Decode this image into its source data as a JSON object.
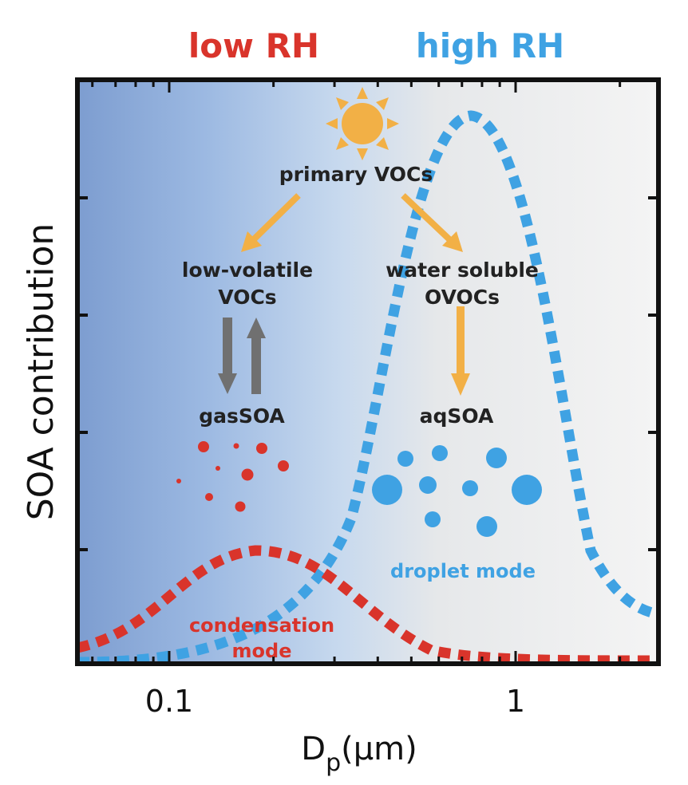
{
  "header": {
    "low_rh": "low RH",
    "high_rh": "high RH"
  },
  "axes": {
    "ylabel": "SOA contribution",
    "xlabel_main": "D",
    "xlabel_sub": "p",
    "xlabel_unit": "(μm)",
    "xticks": [
      {
        "label": "0.1",
        "value": 0.1
      },
      {
        "label": "1",
        "value": 1
      }
    ],
    "xscale": "log"
  },
  "labels": {
    "primary_vocs": "primary VOCs",
    "low_volatile_line1": "low-volatile",
    "low_volatile_line2": "VOCs",
    "water_soluble_line1": "water soluble",
    "water_soluble_line2": "OVOCs",
    "gas_soa": "gasSOA",
    "aq_soa": "aqSOA",
    "droplet_mode": "droplet mode",
    "condensation_mode_line1": "condensation",
    "condensation_mode_line2": "mode"
  },
  "colors": {
    "red": "#d9342b",
    "blue": "#3fa2e3",
    "orange": "#f2b046",
    "gray_arrow": "#707070",
    "bg_blue": "#7d9dd0"
  },
  "icons": {
    "sun": "sun-icon"
  }
}
